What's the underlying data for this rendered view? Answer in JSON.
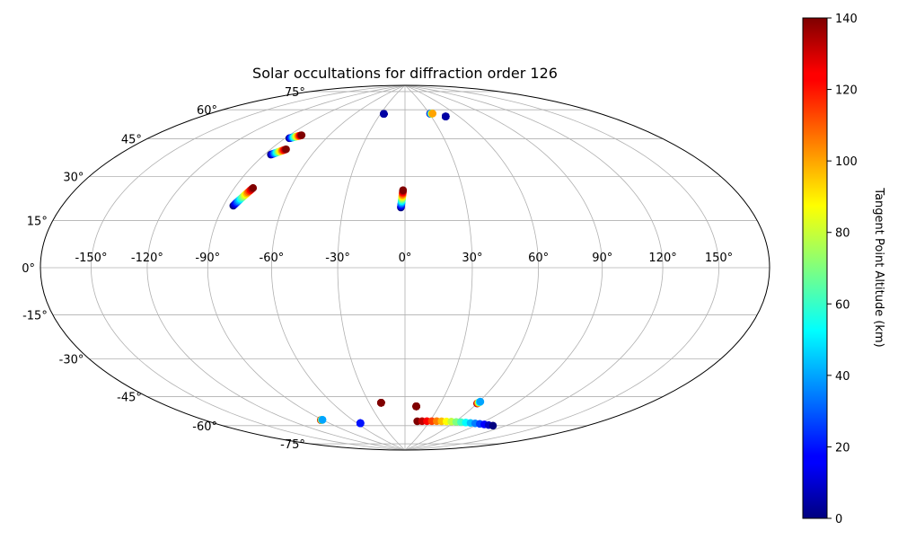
{
  "chart_data": {
    "type": "scatter",
    "projection": "hammer",
    "title": "Solar occultations for diffraction order 126",
    "grid": true,
    "longitude_ticks": [
      "-150°",
      "-120°",
      "-90°",
      "-60°",
      "-30°",
      "0°",
      "30°",
      "60°",
      "90°",
      "120°",
      "150°"
    ],
    "longitude_tick_values": [
      -150,
      -120,
      -90,
      -60,
      -30,
      0,
      30,
      60,
      90,
      120,
      150
    ],
    "latitude_ticks": [
      "75°",
      "60°",
      "45°",
      "30°",
      "15°",
      "0°",
      "-15°",
      "-30°",
      "-45°",
      "-60°",
      "-75°"
    ],
    "latitude_tick_values": [
      75,
      60,
      45,
      30,
      15,
      0,
      -15,
      -30,
      -45,
      -60,
      -75
    ],
    "colorbar": {
      "label": "Tangent Point Altitude (km)",
      "range": [
        0,
        140
      ],
      "ticks": [
        "0",
        "20",
        "40",
        "60",
        "80",
        "100",
        "120",
        "140"
      ],
      "tick_values": [
        0,
        20,
        40,
        60,
        80,
        100,
        120,
        140
      ],
      "colormap": "jet"
    },
    "series": [
      {
        "lon_start": -87,
        "lat_start": 57,
        "lon_end": -81,
        "lat_end": 59,
        "alt_start": 0,
        "alt_end": 140
      },
      {
        "lon_start": -86,
        "lat_start": 49,
        "lon_end": -80,
        "lat_end": 52,
        "alt_start": 0,
        "alt_end": 140
      },
      {
        "lon_start": -85,
        "lat_start": 26,
        "lon_end": -80,
        "lat_end": 34,
        "alt_start": 0,
        "alt_end": 140
      },
      {
        "lon_start": -2,
        "lat_start": 27,
        "lon_end": -1,
        "lat_end": 35,
        "alt_start": 0,
        "alt_end": 140
      },
      {
        "lon_start": -26,
        "lat_start": 73,
        "lon_end": -26,
        "lat_end": 73,
        "alt_start": 0,
        "alt_end": 5
      },
      {
        "lon_start": 31,
        "lat_start": 73,
        "lon_end": 34,
        "lat_end": 73,
        "alt_start": 0,
        "alt_end": 100
      },
      {
        "lon_start": 46,
        "lat_start": 71,
        "lon_end": 46,
        "lat_end": 71,
        "alt_start": 0,
        "alt_end": 5
      },
      {
        "lon_start": 60,
        "lat_start": -62,
        "lon_end": 61,
        "lat_end": -61,
        "alt_start": 140,
        "alt_end": 40
      },
      {
        "lon_start": -20,
        "lat_start": -63,
        "lon_end": -20,
        "lat_end": -63,
        "alt_start": 140,
        "alt_end": 140
      },
      {
        "lon_start": 10,
        "lat_start": -65,
        "lon_end": 10,
        "lat_end": -65,
        "alt_start": 140,
        "alt_end": 140
      },
      {
        "lon_start": -92,
        "lat_start": -69,
        "lon_end": -90,
        "lat_end": -69,
        "alt_start": 140,
        "alt_end": 40
      },
      {
        "lon_start": -56,
        "lat_start": -73,
        "lon_end": -56,
        "lat_end": -73,
        "alt_start": 20,
        "alt_end": 20
      },
      {
        "lon_start": 15,
        "lat_start": -73,
        "lon_end": 108,
        "lat_end": -71,
        "alt_start": 140,
        "alt_end": 0
      }
    ]
  }
}
